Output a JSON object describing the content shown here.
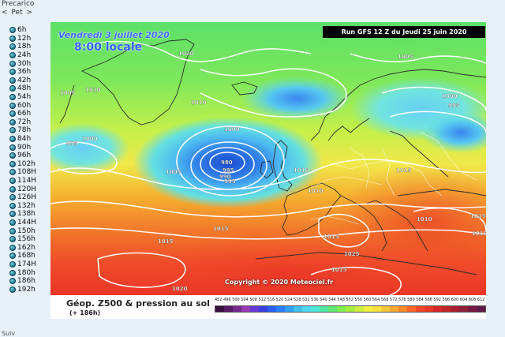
{
  "sidebar": {
    "title": "Precarico",
    "nav": {
      "prev": "<",
      "label": "Pet",
      "next": ">"
    },
    "hours": [
      "6h",
      "12h",
      "18h",
      "24h",
      "30h",
      "36h",
      "42h",
      "48h",
      "54h",
      "60h",
      "66h",
      "72h",
      "78h",
      "84h",
      "90h",
      "96h",
      "102h",
      "108H",
      "114H",
      "120H",
      "126H",
      "132h",
      "138h",
      "144H",
      "150h",
      "156h",
      "162h",
      "168h",
      "174H",
      "180h",
      "186h",
      "192h"
    ],
    "footer": "Suiv"
  },
  "map": {
    "date_title": "Vendredi 3 juillet 2020",
    "time_title": "8:00 locale",
    "run_banner": "Run GFS 12 Z du Jeudi 25 juin 2020",
    "copyright": "Copyright © 2020 Meteociel.fr",
    "isobar_labels": [
      "1020",
      "1005",
      "1010",
      "1010",
      "1000",
      "995",
      "1000",
      "1005",
      "980",
      "985",
      "990",
      "995",
      "1010",
      "1015",
      "1000",
      "995",
      "1005",
      "1015",
      "1010",
      "1015",
      "1015",
      "1020",
      "1025",
      "1015",
      "1010",
      "1015",
      "1010"
    ],
    "colors": {
      "low_core": "#1a5ad8",
      "deep_blue": "#3d8ef0",
      "cyan": "#5ad8f0",
      "green": "#5ce36a",
      "yellow": "#f0e84a",
      "orange": "#f5a028",
      "red": "#f0442a"
    }
  },
  "legend": {
    "title": "Géop. Z500 & pression au sol",
    "subtitle": "(+ 186h)",
    "scale_values": [
      "452",
      "496",
      "500",
      "504",
      "508",
      "512",
      "516",
      "520",
      "524",
      "528",
      "532",
      "536",
      "540",
      "544",
      "548",
      "552",
      "556",
      "560",
      "564",
      "568",
      "572",
      "576",
      "580",
      "584",
      "588",
      "592",
      "596",
      "600",
      "604",
      "608",
      "612"
    ],
    "scale_colors": [
      "#3a1040",
      "#5a1a6a",
      "#7a2a90",
      "#9a3ab8",
      "#6a3ad8",
      "#3a40e0",
      "#2a60f0",
      "#2a80f8",
      "#30a0f8",
      "#40c0f0",
      "#50d8f0",
      "#50e8d8",
      "#50e8a0",
      "#60e870",
      "#80f050",
      "#a8f040",
      "#d0f040",
      "#f0f040",
      "#f8e040",
      "#f8c838",
      "#f8a830",
      "#f88828",
      "#f86828",
      "#f04828",
      "#e83828",
      "#d82828",
      "#c02828",
      "#a82030",
      "#902038",
      "#781840",
      "#601848"
    ]
  }
}
